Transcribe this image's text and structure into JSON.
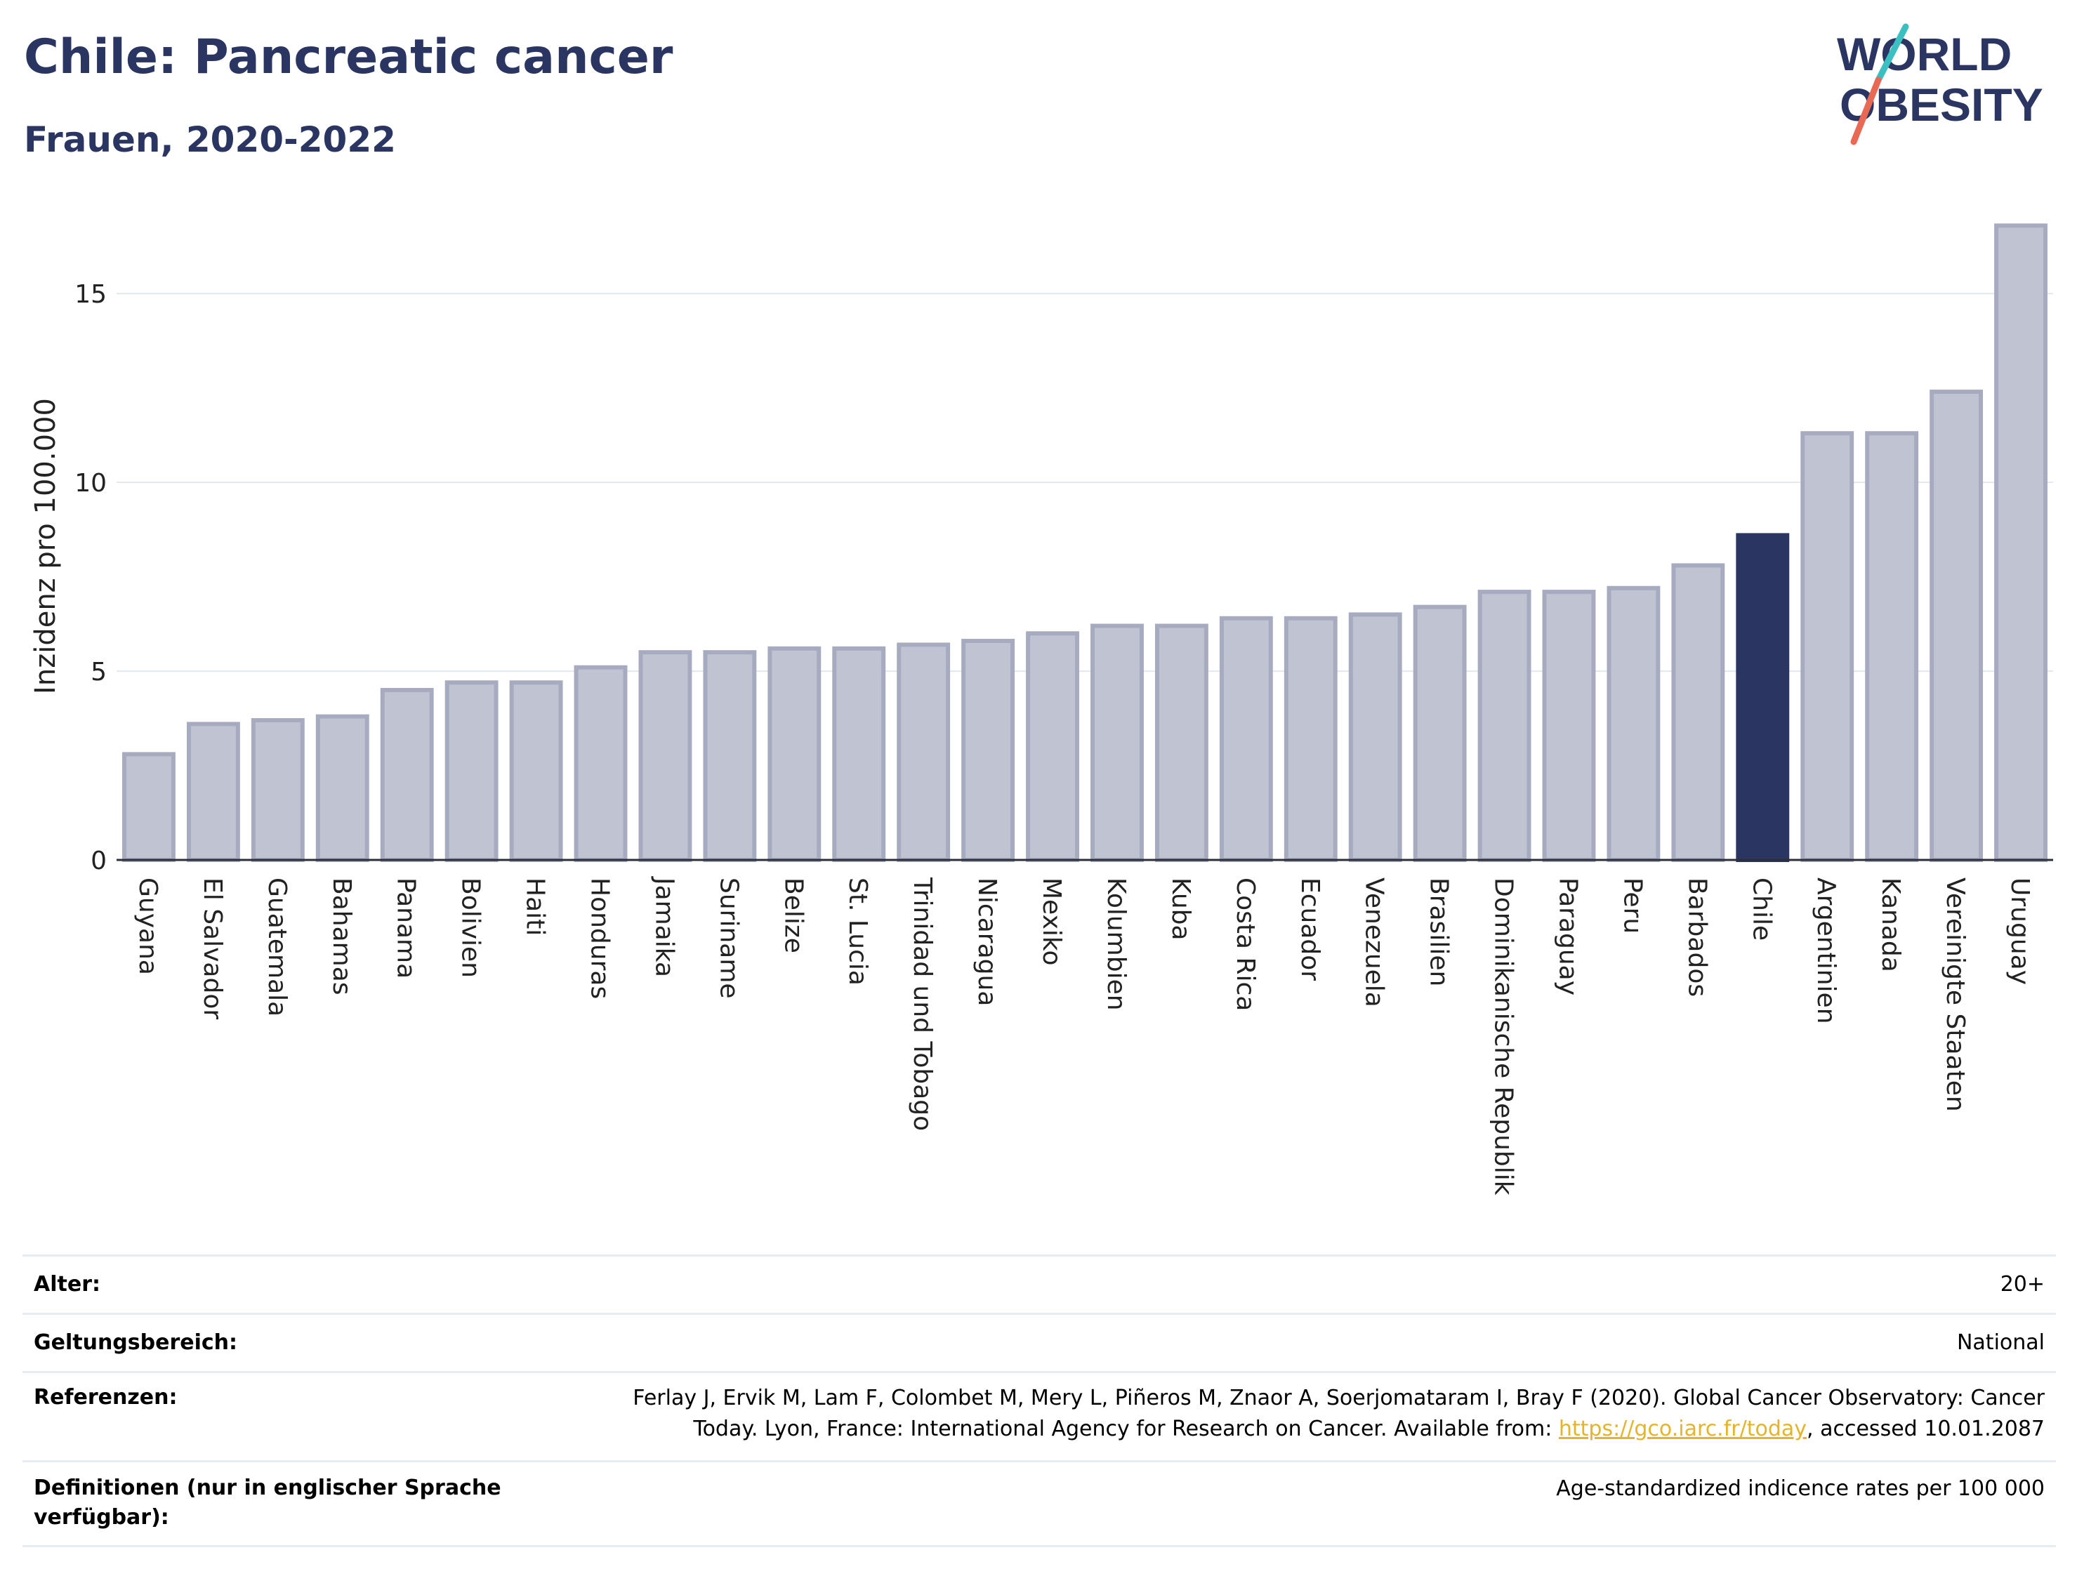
{
  "header": {
    "title": "Chile: Pancreatic cancer",
    "subtitle": "Frauen, 2020-2022",
    "logo_line1": "WORLD",
    "logo_line2": "OBESITY"
  },
  "colors": {
    "title": "#2b3561",
    "bar_default_fill": "#c0c4d2",
    "bar_default_stroke": "#a6abc0",
    "bar_highlight": "#2b3561",
    "logo_text": "#2b3561",
    "logo_slash_teal": "#3bbfc0",
    "logo_slash_red": "#e86a55",
    "link": "#e5b42a"
  },
  "chart_data": {
    "type": "bar",
    "title": "Chile: Pancreatic cancer",
    "subtitle": "Frauen, 2020-2022",
    "xlabel": "",
    "ylabel": "Inzidenz pro 100.000",
    "ylim": [
      0,
      16.9
    ],
    "yticks": [
      0,
      5,
      10,
      15
    ],
    "grid": true,
    "highlight": "Chile",
    "categories": [
      "Guyana",
      "El Salvador",
      "Guatemala",
      "Bahamas",
      "Panama",
      "Bolivien",
      "Haiti",
      "Honduras",
      "Jamaika",
      "Suriname",
      "Belize",
      "St. Lucia",
      "Trinidad und Tobago",
      "Nicaragua",
      "Mexiko",
      "Kolumbien",
      "Kuba",
      "Costa Rica",
      "Ecuador",
      "Venezuela",
      "Brasilien",
      "Dominikanische Republik",
      "Paraguay",
      "Peru",
      "Barbados",
      "Chile",
      "Argentinien",
      "Kanada",
      "Vereinigte Staaten",
      "Uruguay"
    ],
    "values": [
      2.8,
      3.6,
      3.7,
      3.8,
      4.5,
      4.7,
      4.7,
      5.1,
      5.5,
      5.5,
      5.6,
      5.6,
      5.7,
      5.8,
      6.0,
      6.2,
      6.2,
      6.4,
      6.4,
      6.5,
      6.7,
      7.1,
      7.1,
      7.2,
      7.8,
      8.6,
      11.3,
      11.3,
      12.4,
      16.8
    ]
  },
  "meta": {
    "rows": [
      {
        "label": "Alter:",
        "value": "20+"
      },
      {
        "label": "Geltungsbereich:",
        "value": "National"
      },
      {
        "label": "Referenzen:",
        "value_pre": "Ferlay J, Ervik M, Lam F, Colombet M, Mery L, Piñeros M, Znaor A, Soerjomataram I, Bray F (2020). Global Cancer Observatory: Cancer Today. Lyon, France: International Agency for Research on Cancer. Available from: ",
        "link": "https://gco.iarc.fr/today",
        "value_post": ", accessed 10.01.2087"
      },
      {
        "label": "Definitionen (nur in englischer Sprache verfügbar):",
        "value": "Age-standardized indicence rates per 100 000"
      }
    ]
  }
}
